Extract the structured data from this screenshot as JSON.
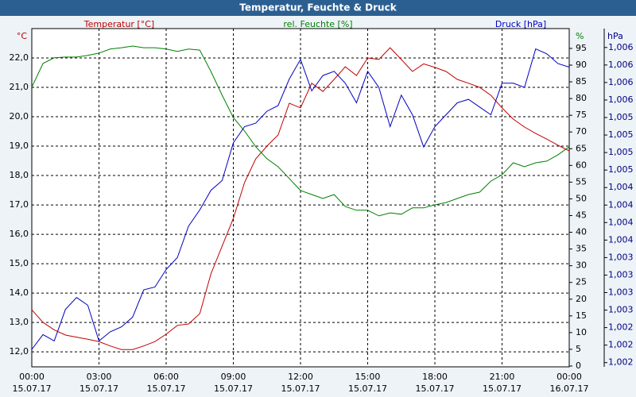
{
  "chart_data": {
    "type": "line",
    "title": "Temperatur, Feuchte & Druck",
    "xlim": [
      0,
      24
    ],
    "xticks": [
      {
        "value": 0,
        "label": "00:00"
      },
      {
        "value": 3,
        "label": "03:00"
      },
      {
        "value": 6,
        "label": "06:00"
      },
      {
        "value": 9,
        "label": "09:00"
      },
      {
        "value": 12,
        "label": "12:00"
      },
      {
        "value": 15,
        "label": "15:00"
      },
      {
        "value": 18,
        "label": "18:00"
      },
      {
        "value": 21,
        "label": "21:00"
      },
      {
        "value": 24,
        "label": "00:00"
      }
    ],
    "xtick_dates": [
      "15.07.17",
      "15.07.17",
      "15.07.17",
      "15.07.17",
      "15.07.17",
      "15.07.17",
      "15.07.17",
      "15.07.17",
      "16.07.17"
    ],
    "y_unit": "°C",
    "y2_unit": "%",
    "y3_unit": "hPa",
    "ylim": [
      11.49,
      23.0
    ],
    "yticks": [
      {
        "value": 12,
        "label": "12,0"
      },
      {
        "value": 13,
        "label": "13,0"
      },
      {
        "value": 14,
        "label": "14,0"
      },
      {
        "value": 15,
        "label": "15,0"
      },
      {
        "value": 16,
        "label": "16,0"
      },
      {
        "value": 17,
        "label": "17,0"
      },
      {
        "value": 18,
        "label": "18,0"
      },
      {
        "value": 19,
        "label": "19,0"
      },
      {
        "value": 20,
        "label": "20,0"
      },
      {
        "value": 21,
        "label": "21,0"
      },
      {
        "value": 22,
        "label": "22,0"
      }
    ],
    "y2lim": [
      -0.24,
      100.93
    ],
    "y2ticks": [
      0,
      5,
      10,
      15,
      20,
      25,
      30,
      35,
      40,
      45,
      50,
      55,
      60,
      65,
      70,
      75,
      80,
      85,
      90,
      95
    ],
    "y3lim": [
      1001.69,
      1006.52
    ],
    "y3ticks": [
      {
        "value": 1001.75,
        "label": "1,002"
      },
      {
        "value": 1002.0,
        "label": "1,002"
      },
      {
        "value": 1002.25,
        "label": "1,002"
      },
      {
        "value": 1002.5,
        "label": "1,003"
      },
      {
        "value": 1002.75,
        "label": "1,003"
      },
      {
        "value": 1003.0,
        "label": "1,003"
      },
      {
        "value": 1003.25,
        "label": "1,003"
      },
      {
        "value": 1003.5,
        "label": "1,004"
      },
      {
        "value": 1003.75,
        "label": "1,004"
      },
      {
        "value": 1004.0,
        "label": "1,004"
      },
      {
        "value": 1004.25,
        "label": "1,004"
      },
      {
        "value": 1004.5,
        "label": "1,005"
      },
      {
        "value": 1004.75,
        "label": "1,005"
      },
      {
        "value": 1005.0,
        "label": "1,005"
      },
      {
        "value": 1005.25,
        "label": "1,005"
      },
      {
        "value": 1005.5,
        "label": "1,006"
      },
      {
        "value": 1005.75,
        "label": "1,006"
      },
      {
        "value": 1006.0,
        "label": "1,006"
      },
      {
        "value": 1006.25,
        "label": "1,006"
      }
    ],
    "grid": true,
    "x": [
      0,
      0.5,
      1,
      1.5,
      2,
      2.5,
      3,
      3.5,
      4,
      4.5,
      5,
      5.5,
      6,
      6.5,
      7,
      7.5,
      8,
      8.5,
      9,
      9.5,
      10,
      10.5,
      11,
      11.5,
      12,
      12.5,
      13,
      13.5,
      14,
      14.5,
      15,
      15.5,
      16,
      16.5,
      17,
      17.5,
      18,
      18.5,
      19,
      19.5,
      20,
      20.5,
      21,
      21.5,
      22,
      22.5,
      23,
      23.5,
      24
    ],
    "series": [
      {
        "name": "Temperatur [°C]",
        "color": "#c00000",
        "axis": "y",
        "values": [
          13.43,
          13.0,
          12.75,
          12.57,
          12.5,
          12.43,
          12.35,
          12.2,
          12.08,
          12.08,
          12.2,
          12.35,
          12.6,
          12.9,
          12.95,
          13.3,
          14.65,
          15.6,
          16.54,
          17.76,
          18.57,
          19.0,
          19.38,
          20.46,
          20.3,
          21.14,
          20.86,
          21.27,
          21.7,
          21.4,
          22.0,
          21.95,
          22.35,
          21.95,
          21.54,
          21.8,
          21.68,
          21.54,
          21.27,
          21.14,
          21.0,
          20.73,
          20.3,
          19.92,
          19.65,
          19.43,
          19.24,
          19.03,
          18.84
        ]
      },
      {
        "name": "rel. Feuchte [%]",
        "color": "#008000",
        "axis": "y2",
        "values": [
          83.4,
          90.5,
          92.2,
          92.4,
          92.4,
          92.9,
          93.6,
          94.8,
          95.2,
          95.7,
          95.2,
          95.2,
          94.8,
          94.1,
          94.8,
          94.5,
          88.1,
          81.0,
          74.3,
          70.3,
          65.6,
          62.0,
          59.6,
          56.1,
          52.5,
          51.3,
          50.1,
          51.3,
          47.7,
          46.6,
          46.6,
          44.9,
          45.8,
          45.4,
          47.3,
          47.3,
          48.2,
          48.9,
          50.1,
          51.3,
          52.0,
          55.3,
          57.2,
          60.8,
          59.6,
          60.8,
          61.3,
          63.2,
          65.6
        ]
      },
      {
        "name": "Druck [hPa]",
        "color": "#0000c0",
        "axis": "y3",
        "values": [
          1001.94,
          1002.15,
          1002.06,
          1002.51,
          1002.68,
          1002.57,
          1002.06,
          1002.19,
          1002.26,
          1002.4,
          1002.79,
          1002.83,
          1003.08,
          1003.25,
          1003.7,
          1003.93,
          1004.21,
          1004.35,
          1004.89,
          1005.12,
          1005.17,
          1005.34,
          1005.42,
          1005.8,
          1006.08,
          1005.63,
          1005.85,
          1005.91,
          1005.74,
          1005.46,
          1005.91,
          1005.68,
          1005.12,
          1005.57,
          1005.29,
          1004.83,
          1005.12,
          1005.29,
          1005.46,
          1005.51,
          1005.4,
          1005.29,
          1005.74,
          1005.74,
          1005.68,
          1006.23,
          1006.16,
          1006.02,
          1005.97
        ]
      }
    ]
  }
}
